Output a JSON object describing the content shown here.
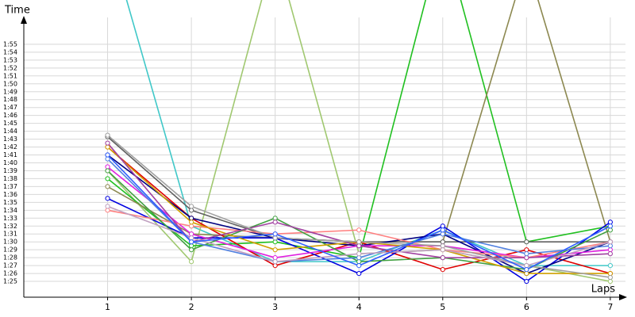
{
  "chart_data": {
    "type": "line",
    "y_label": "Time",
    "x_label": "Laps",
    "x": [
      1,
      2,
      3,
      4,
      5,
      6,
      7
    ],
    "xlim": [
      0,
      7.2
    ],
    "xticks": [
      1,
      2,
      3,
      4,
      5,
      6,
      7
    ],
    "ylim": [
      83,
      117.6
    ],
    "yticks": [
      {
        "value": 85,
        "label": "1:25"
      },
      {
        "value": 86,
        "label": "1:26"
      },
      {
        "value": 87,
        "label": "1:27"
      },
      {
        "value": 88,
        "label": "1:28"
      },
      {
        "value": 89,
        "label": "1:29"
      },
      {
        "value": 90,
        "label": "1:30"
      },
      {
        "value": 91,
        "label": "1:31"
      },
      {
        "value": 92,
        "label": "1:32"
      },
      {
        "value": 93,
        "label": "1:33"
      },
      {
        "value": 94,
        "label": "1:34"
      },
      {
        "value": 95,
        "label": "1:35"
      },
      {
        "value": 96,
        "label": "1:36"
      },
      {
        "value": 97,
        "label": "1:37"
      },
      {
        "value": 98,
        "label": "1:38"
      },
      {
        "value": 99,
        "label": "1:39"
      },
      {
        "value": 100,
        "label": "1:40"
      },
      {
        "value": 101,
        "label": "1:41"
      },
      {
        "value": 102,
        "label": "1:42"
      },
      {
        "value": 103,
        "label": "1:43"
      },
      {
        "value": 104,
        "label": "1:44"
      },
      {
        "value": 105,
        "label": "1:45"
      },
      {
        "value": 106,
        "label": "1:46"
      },
      {
        "value": 107,
        "label": "1:47"
      },
      {
        "value": 108,
        "label": "1:48"
      },
      {
        "value": 109,
        "label": "1:49"
      },
      {
        "value": 110,
        "label": "1:50"
      },
      {
        "value": 111,
        "label": "1:51"
      },
      {
        "value": 112,
        "label": "1:52"
      },
      {
        "value": 113,
        "label": "1:53"
      },
      {
        "value": 114,
        "label": "1:54"
      },
      {
        "value": 115,
        "label": "1:55"
      }
    ],
    "grid": true,
    "series": [
      {
        "color": "#40c8c8",
        "values": [
          129,
          92,
          87.5,
          87.5,
          91.5,
          87,
          87
        ]
      },
      {
        "color": "#a0c870",
        "values": [
          99,
          87.5,
          127,
          88.5,
          89,
          87,
          85
        ]
      },
      {
        "color": "#20c020",
        "values": [
          98,
          89.5,
          90,
          88,
          129,
          90,
          92
        ]
      },
      {
        "color": "#8c8850",
        "values": [
          97,
          91,
          90.5,
          90,
          90,
          125.5,
          90
        ]
      },
      {
        "color": "#606060",
        "values": [
          103.3,
          94,
          90.5,
          90,
          90,
          90,
          90
        ]
      },
      {
        "color": "#e00000",
        "values": [
          102,
          93,
          87,
          90,
          86.5,
          89,
          86
        ]
      },
      {
        "color": "#0000e0",
        "values": [
          95.5,
          90.5,
          90.5,
          86,
          92,
          85,
          92.5
        ]
      },
      {
        "color": "#000080",
        "values": [
          101,
          93,
          90.5,
          89.5,
          91,
          86,
          90
        ]
      },
      {
        "color": "#e020e0",
        "values": [
          99.5,
          91,
          88,
          89.5,
          89.5,
          88,
          89
        ]
      },
      {
        "color": "#ff8080",
        "values": [
          94,
          92,
          91,
          91.5,
          89,
          88,
          90
        ]
      },
      {
        "color": "#40a040",
        "values": [
          99,
          89,
          93,
          87.5,
          88,
          86.5,
          91.5
        ]
      },
      {
        "color": "#d0a000",
        "values": [
          102,
          92.5,
          89,
          90,
          89,
          86,
          86
        ]
      },
      {
        "color": "#a040a0",
        "values": [
          102.5,
          90,
          92.5,
          89.5,
          88,
          88,
          88.5
        ]
      },
      {
        "color": "#a0a0a0",
        "values": [
          103.5,
          94.5,
          90.5,
          90,
          89.5,
          87,
          85.5
        ]
      },
      {
        "color": "#5080e0",
        "values": [
          100.5,
          90,
          87.5,
          88,
          91,
          88.5,
          89.5
        ]
      },
      {
        "color": "#c0a0c0",
        "values": [
          94.5,
          90.5,
          87.5,
          88.5,
          89,
          87,
          90
        ]
      },
      {
        "color": "#3060ff",
        "values": [
          101,
          90,
          91,
          87,
          91.5,
          86.5,
          92
        ]
      }
    ]
  }
}
